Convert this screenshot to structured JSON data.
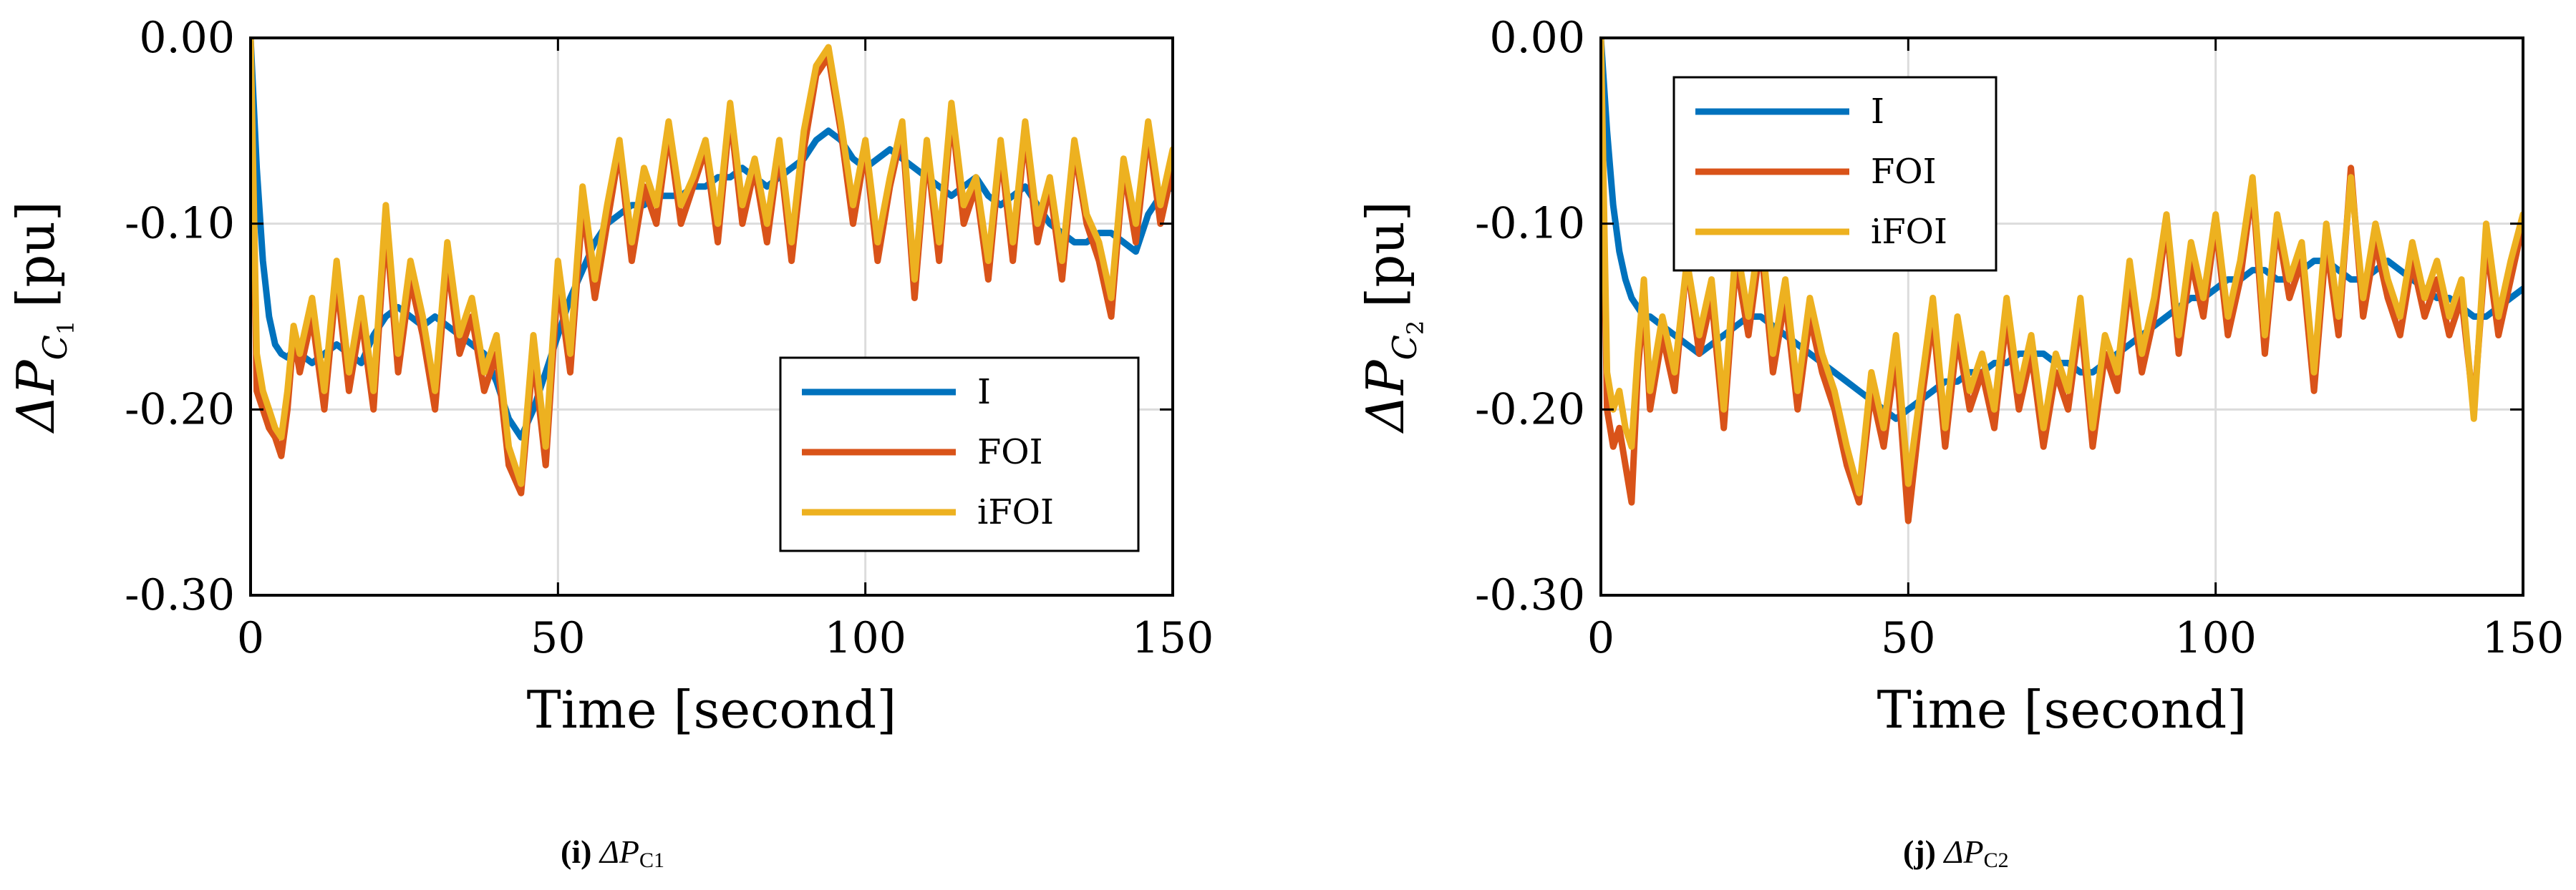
{
  "chart_data": [
    {
      "type": "line",
      "xlabel": "Time [second]",
      "ylabel": "ΔP",
      "ylabel_subscript": "C",
      "ylabel_subscript_index": "1",
      "ylabel_unit": "[pu]",
      "xlim": [
        0,
        150
      ],
      "ylim": [
        -0.3,
        0.0
      ],
      "xticks": [
        0,
        50,
        100,
        150
      ],
      "xtick_labels": [
        "0",
        "50",
        "100",
        "150"
      ],
      "yticks": [
        0.0,
        -0.1,
        -0.2,
        -0.3
      ],
      "ytick_labels": [
        "0.00",
        "-0.10",
        "-0.20",
        "-0.30"
      ],
      "grid": true,
      "legend_position": "lower-right",
      "caption_letter": "(i)",
      "caption_text": "ΔP",
      "caption_sub": "C1",
      "x": [
        0,
        1,
        2,
        3,
        4,
        5,
        6,
        7,
        8,
        10,
        12,
        14,
        16,
        18,
        20,
        22,
        24,
        26,
        28,
        30,
        32,
        34,
        36,
        38,
        40,
        42,
        44,
        46,
        48,
        50,
        52,
        54,
        56,
        58,
        60,
        62,
        64,
        66,
        68,
        70,
        72,
        74,
        76,
        78,
        80,
        82,
        84,
        86,
        88,
        90,
        92,
        94,
        96,
        98,
        100,
        102,
        104,
        106,
        108,
        110,
        112,
        114,
        116,
        118,
        120,
        122,
        124,
        126,
        128,
        130,
        132,
        134,
        136,
        138,
        140,
        142,
        144,
        146,
        148,
        150
      ],
      "series": [
        {
          "name": "I",
          "color": "#0072BD",
          "values": [
            0.0,
            -0.07,
            -0.12,
            -0.15,
            -0.165,
            -0.17,
            -0.172,
            -0.168,
            -0.17,
            -0.175,
            -0.17,
            -0.165,
            -0.17,
            -0.175,
            -0.16,
            -0.15,
            -0.145,
            -0.15,
            -0.155,
            -0.15,
            -0.155,
            -0.16,
            -0.165,
            -0.17,
            -0.185,
            -0.205,
            -0.215,
            -0.2,
            -0.18,
            -0.16,
            -0.14,
            -0.125,
            -0.11,
            -0.1,
            -0.095,
            -0.09,
            -0.09,
            -0.085,
            -0.085,
            -0.085,
            -0.08,
            -0.08,
            -0.075,
            -0.075,
            -0.07,
            -0.075,
            -0.08,
            -0.075,
            -0.07,
            -0.065,
            -0.055,
            -0.05,
            -0.055,
            -0.065,
            -0.07,
            -0.065,
            -0.06,
            -0.065,
            -0.07,
            -0.075,
            -0.08,
            -0.085,
            -0.08,
            -0.075,
            -0.085,
            -0.09,
            -0.085,
            -0.08,
            -0.09,
            -0.1,
            -0.105,
            -0.11,
            -0.11,
            -0.105,
            -0.105,
            -0.11,
            -0.115,
            -0.095,
            -0.085,
            -0.08
          ]
        },
        {
          "name": "FOI",
          "color": "#D95319",
          "values": [
            0.0,
            -0.19,
            -0.2,
            -0.21,
            -0.215,
            -0.225,
            -0.2,
            -0.16,
            -0.18,
            -0.15,
            -0.2,
            -0.13,
            -0.19,
            -0.15,
            -0.2,
            -0.1,
            -0.18,
            -0.13,
            -0.16,
            -0.2,
            -0.12,
            -0.17,
            -0.15,
            -0.19,
            -0.17,
            -0.23,
            -0.245,
            -0.17,
            -0.23,
            -0.13,
            -0.18,
            -0.09,
            -0.14,
            -0.1,
            -0.06,
            -0.12,
            -0.08,
            -0.1,
            -0.05,
            -0.1,
            -0.08,
            -0.06,
            -0.11,
            -0.04,
            -0.1,
            -0.07,
            -0.11,
            -0.06,
            -0.12,
            -0.06,
            -0.02,
            -0.01,
            -0.05,
            -0.1,
            -0.06,
            -0.12,
            -0.08,
            -0.05,
            -0.14,
            -0.06,
            -0.12,
            -0.04,
            -0.1,
            -0.08,
            -0.13,
            -0.06,
            -0.12,
            -0.05,
            -0.11,
            -0.08,
            -0.13,
            -0.06,
            -0.1,
            -0.12,
            -0.15,
            -0.07,
            -0.11,
            -0.05,
            -0.1,
            -0.07
          ]
        },
        {
          "name": "iFOI",
          "color": "#EDB120",
          "values": [
            0.0,
            -0.17,
            -0.19,
            -0.2,
            -0.21,
            -0.215,
            -0.19,
            -0.155,
            -0.17,
            -0.14,
            -0.19,
            -0.12,
            -0.18,
            -0.14,
            -0.19,
            -0.09,
            -0.17,
            -0.12,
            -0.15,
            -0.19,
            -0.11,
            -0.16,
            -0.14,
            -0.18,
            -0.16,
            -0.22,
            -0.24,
            -0.16,
            -0.22,
            -0.12,
            -0.17,
            -0.08,
            -0.13,
            -0.09,
            -0.055,
            -0.11,
            -0.07,
            -0.09,
            -0.045,
            -0.09,
            -0.075,
            -0.055,
            -0.1,
            -0.035,
            -0.09,
            -0.065,
            -0.1,
            -0.055,
            -0.11,
            -0.05,
            -0.015,
            -0.005,
            -0.045,
            -0.09,
            -0.055,
            -0.11,
            -0.075,
            -0.045,
            -0.13,
            -0.055,
            -0.11,
            -0.035,
            -0.09,
            -0.075,
            -0.12,
            -0.055,
            -0.11,
            -0.045,
            -0.1,
            -0.075,
            -0.12,
            -0.055,
            -0.095,
            -0.11,
            -0.14,
            -0.065,
            -0.1,
            -0.045,
            -0.09,
            -0.06
          ]
        }
      ]
    },
    {
      "type": "line",
      "xlabel": "Time [second]",
      "ylabel": "ΔP",
      "ylabel_subscript": "C",
      "ylabel_subscript_index": "2",
      "ylabel_unit": "[pu]",
      "xlim": [
        0,
        150
      ],
      "ylim": [
        -0.3,
        0.0
      ],
      "xticks": [
        0,
        50,
        100,
        150
      ],
      "xtick_labels": [
        "0",
        "50",
        "100",
        "150"
      ],
      "yticks": [
        0.0,
        -0.1,
        -0.2,
        -0.3
      ],
      "ytick_labels": [
        "0.00",
        "-0.10",
        "-0.20",
        "-0.30"
      ],
      "grid": true,
      "legend_position": "top-left",
      "caption_letter": "(j)",
      "caption_text": "ΔP",
      "caption_sub": "C2",
      "x": [
        0,
        1,
        2,
        3,
        4,
        5,
        6,
        7,
        8,
        10,
        12,
        14,
        16,
        18,
        20,
        22,
        24,
        26,
        28,
        30,
        32,
        34,
        36,
        38,
        40,
        42,
        44,
        46,
        48,
        50,
        52,
        54,
        56,
        58,
        60,
        62,
        64,
        66,
        68,
        70,
        72,
        74,
        76,
        78,
        80,
        82,
        84,
        86,
        88,
        90,
        92,
        94,
        96,
        98,
        100,
        102,
        104,
        106,
        108,
        110,
        112,
        114,
        116,
        118,
        120,
        122,
        124,
        126,
        128,
        130,
        132,
        134,
        136,
        138,
        140,
        142,
        144,
        146,
        148,
        150
      ],
      "series": [
        {
          "name": "I",
          "color": "#0072BD",
          "values": [
            0.0,
            -0.05,
            -0.09,
            -0.115,
            -0.13,
            -0.14,
            -0.145,
            -0.15,
            -0.15,
            -0.155,
            -0.16,
            -0.165,
            -0.17,
            -0.165,
            -0.16,
            -0.155,
            -0.15,
            -0.15,
            -0.155,
            -0.16,
            -0.165,
            -0.17,
            -0.175,
            -0.18,
            -0.185,
            -0.19,
            -0.195,
            -0.2,
            -0.205,
            -0.2,
            -0.195,
            -0.19,
            -0.185,
            -0.185,
            -0.18,
            -0.18,
            -0.175,
            -0.175,
            -0.17,
            -0.17,
            -0.17,
            -0.175,
            -0.175,
            -0.18,
            -0.18,
            -0.175,
            -0.17,
            -0.165,
            -0.16,
            -0.155,
            -0.15,
            -0.145,
            -0.14,
            -0.14,
            -0.135,
            -0.13,
            -0.13,
            -0.125,
            -0.125,
            -0.13,
            -0.13,
            -0.125,
            -0.12,
            -0.12,
            -0.125,
            -0.13,
            -0.13,
            -0.125,
            -0.12,
            -0.125,
            -0.13,
            -0.135,
            -0.14,
            -0.14,
            -0.145,
            -0.15,
            -0.15,
            -0.145,
            -0.14,
            -0.135
          ]
        },
        {
          "name": "FOI",
          "color": "#D95319",
          "values": [
            0.0,
            -0.2,
            -0.22,
            -0.21,
            -0.23,
            -0.25,
            -0.18,
            -0.14,
            -0.2,
            -0.16,
            -0.19,
            -0.12,
            -0.17,
            -0.14,
            -0.21,
            -0.12,
            -0.16,
            -0.11,
            -0.18,
            -0.14,
            -0.2,
            -0.15,
            -0.18,
            -0.2,
            -0.23,
            -0.25,
            -0.19,
            -0.22,
            -0.17,
            -0.26,
            -0.2,
            -0.15,
            -0.22,
            -0.16,
            -0.2,
            -0.18,
            -0.21,
            -0.15,
            -0.2,
            -0.17,
            -0.22,
            -0.18,
            -0.2,
            -0.15,
            -0.22,
            -0.17,
            -0.19,
            -0.13,
            -0.18,
            -0.15,
            -0.1,
            -0.17,
            -0.12,
            -0.15,
            -0.1,
            -0.16,
            -0.13,
            -0.08,
            -0.17,
            -0.1,
            -0.14,
            -0.12,
            -0.19,
            -0.11,
            -0.16,
            -0.07,
            -0.15,
            -0.11,
            -0.14,
            -0.16,
            -0.12,
            -0.15,
            -0.13,
            -0.16,
            -0.14,
            -0.2,
            -0.11,
            -0.16,
            -0.13,
            -0.1
          ]
        },
        {
          "name": "iFOI",
          "color": "#EDB120",
          "values": [
            0.0,
            -0.18,
            -0.2,
            -0.19,
            -0.21,
            -0.22,
            -0.17,
            -0.13,
            -0.19,
            -0.15,
            -0.18,
            -0.12,
            -0.16,
            -0.13,
            -0.2,
            -0.11,
            -0.15,
            -0.1,
            -0.17,
            -0.13,
            -0.19,
            -0.14,
            -0.17,
            -0.19,
            -0.22,
            -0.245,
            -0.18,
            -0.21,
            -0.16,
            -0.24,
            -0.19,
            -0.14,
            -0.21,
            -0.15,
            -0.19,
            -0.17,
            -0.2,
            -0.14,
            -0.19,
            -0.16,
            -0.21,
            -0.17,
            -0.19,
            -0.14,
            -0.21,
            -0.16,
            -0.18,
            -0.12,
            -0.17,
            -0.14,
            -0.095,
            -0.16,
            -0.11,
            -0.14,
            -0.095,
            -0.15,
            -0.12,
            -0.075,
            -0.16,
            -0.095,
            -0.13,
            -0.11,
            -0.18,
            -0.1,
            -0.15,
            -0.075,
            -0.14,
            -0.1,
            -0.13,
            -0.15,
            -0.11,
            -0.14,
            -0.12,
            -0.15,
            -0.13,
            -0.205,
            -0.1,
            -0.15,
            -0.12,
            -0.095
          ]
        }
      ]
    }
  ]
}
